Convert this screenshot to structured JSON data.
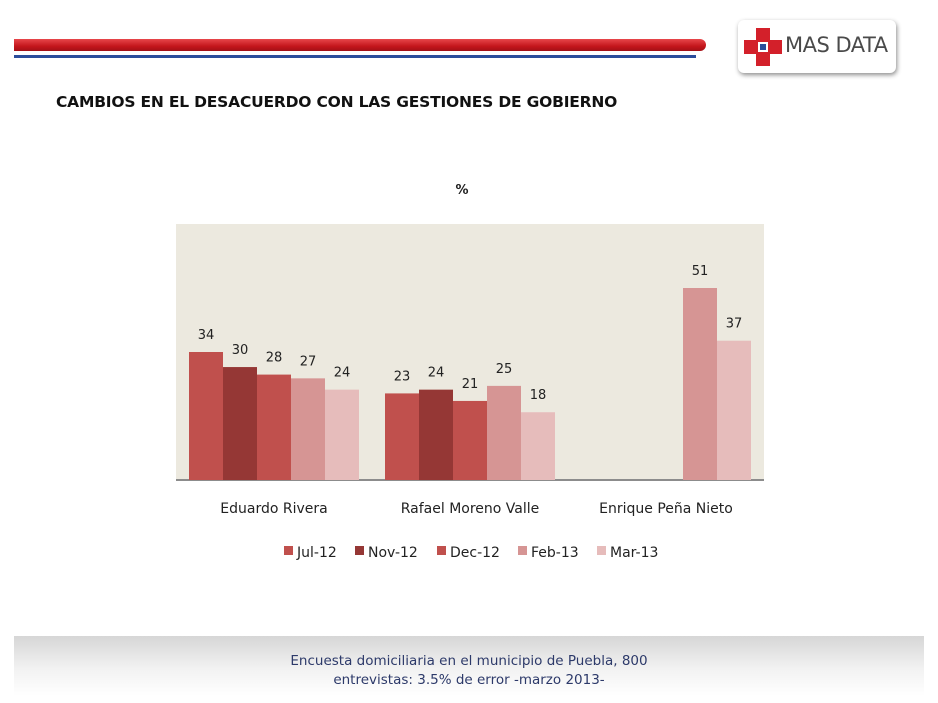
{
  "logo": {
    "text": "MAS DATA",
    "icon": "red-cross-icon"
  },
  "title": "CAMBIOS EN EL DESACUERDO CON LAS GESTIONES DE GOBIERNO",
  "footnote": {
    "line1": "Encuesta domiciliaria en el municipio de Puebla, 800",
    "line2": "entrevistas: 3.5% de error -marzo 2013-"
  },
  "colors": {
    "header_bar": "#c4161c",
    "header_line": "#2b4d9b",
    "plot_background": "#ece9df"
  },
  "chart_data": {
    "type": "bar",
    "title": "",
    "unit_label": "%",
    "categories": [
      "Eduardo Rivera",
      "Rafael Moreno Valle",
      "Enrique Peña Nieto"
    ],
    "series": [
      {
        "name": "Jul-12",
        "color": "#c0504d",
        "values": [
          34,
          23,
          null
        ]
      },
      {
        "name": "Nov-12",
        "color": "#953735",
        "values": [
          30,
          24,
          null
        ]
      },
      {
        "name": "Dec-12",
        "color": "#c0504d",
        "values": [
          28,
          21,
          null
        ]
      },
      {
        "name": "Feb-13",
        "color": "#d69594",
        "values": [
          27,
          25,
          51
        ]
      },
      {
        "name": "Mar-13",
        "color": "#e6bcbb",
        "values": [
          24,
          18,
          37
        ]
      }
    ],
    "ylim": [
      0,
      68
    ],
    "data_labels": true,
    "grid": false,
    "legend_position": "bottom"
  }
}
